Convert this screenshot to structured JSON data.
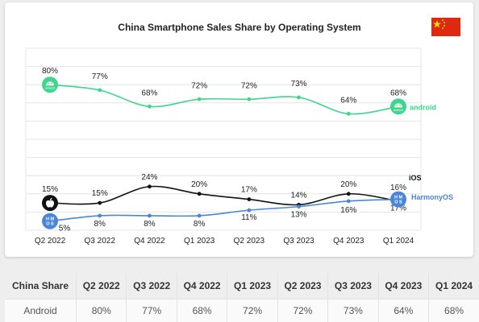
{
  "chart_data": {
    "type": "line",
    "title": "China Smartphone Sales Share by Operating System",
    "categories": [
      "Q2 2022",
      "Q3 2022",
      "Q4 2022",
      "Q1 2023",
      "Q2 2023",
      "Q3 2023",
      "Q4 2023",
      "Q1 2024"
    ],
    "ylim": [
      0,
      100
    ],
    "grid": true,
    "series": [
      {
        "name": "android",
        "color": "#3dd68c",
        "icon": "android-icon",
        "values": [
          80,
          77,
          68,
          72,
          72,
          73,
          64,
          68
        ],
        "labels": [
          "80%",
          "77%",
          "68%",
          "72%",
          "72%",
          "73%",
          "64%",
          "68%"
        ]
      },
      {
        "name": "iOS",
        "color": "#111111",
        "icon": "apple-icon",
        "values": [
          15,
          15,
          24,
          20,
          17,
          14,
          20,
          16
        ],
        "labels": [
          "15%",
          "15%",
          "24%",
          "20%",
          "17%",
          "14%",
          "20%",
          "16%"
        ]
      },
      {
        "name": "HarmonyOS",
        "color": "#4a86d8",
        "icon": "harmonyos-icon",
        "values": [
          5,
          8,
          8,
          8,
          11,
          13,
          16,
          17
        ],
        "labels": [
          "5%",
          "8%",
          "8%",
          "8%",
          "11%",
          "13%",
          "16%",
          "17%"
        ]
      }
    ],
    "icon_text": {
      "android": "android",
      "harmony": "H M\nO S"
    }
  },
  "flag": {
    "name": "china-flag-icon",
    "color": "#de2910",
    "star_color": "#ffde00"
  },
  "table": {
    "headers": [
      "China Share",
      "Q2 2022",
      "Q3 2022",
      "Q4 2022",
      "Q1 2023",
      "Q2 2023",
      "Q3 2023",
      "Q4 2023",
      "Q1 2024"
    ],
    "rows": [
      [
        "Android",
        "80%",
        "77%",
        "68%",
        "72%",
        "72%",
        "73%",
        "64%",
        "68%"
      ]
    ]
  }
}
